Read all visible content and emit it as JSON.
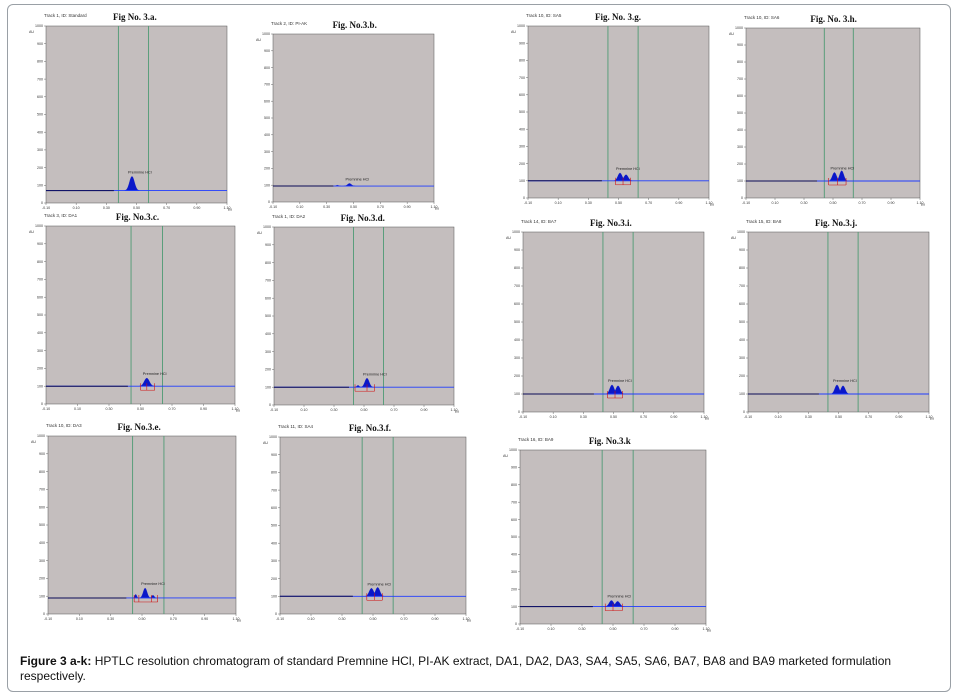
{
  "caption": {
    "label": "Figure 3 a-k:",
    "text": " HPTLC resolution  chromatogram of standard Premnine HCl, PI-AK extract, DA1, DA2,  DA3, SA4, SA5, SA6, BA7, BA8 and BA9 marketed formulation respectively."
  },
  "colors": {
    "plot_bg": "#c4bebe",
    "baseline": "#1f3cff",
    "peak_fill": "#0a17c9",
    "divider": "#4f9a74",
    "marker": "#d01010"
  },
  "chart_data": [
    {
      "id": "a",
      "type": "area",
      "track_label": "Track 1, ID: Standard",
      "title": "Fig No. 3.a.",
      "au_label": "AU",
      "x_unit": "Rf",
      "ylim": [
        0,
        1000
      ],
      "yticks": [
        "1000",
        "900",
        "800",
        "700",
        "600",
        "500",
        "400",
        "300",
        "200",
        "100",
        "0"
      ],
      "xlim": [
        -0.1,
        1.1
      ],
      "xticks": [
        "-0.10",
        "0.10",
        "0.30",
        "0.50",
        "0.70",
        "0.90",
        "1.10"
      ],
      "baseline": 70,
      "dividers": [
        0.38,
        0.58
      ],
      "peaks": [
        {
          "rf": 0.47,
          "height": 150,
          "width": 0.016,
          "label": "Premnine HCl"
        }
      ],
      "markers": []
    },
    {
      "id": "b",
      "type": "area",
      "track_label": "Track 2, ID: PI-AK",
      "title": "Fig. No.3.b.",
      "au_label": "AU",
      "x_unit": "Rf",
      "ylim": [
        0,
        1000
      ],
      "yticks": [
        "1000",
        "900",
        "800",
        "700",
        "600",
        "500",
        "400",
        "300",
        "200",
        "100",
        "0"
      ],
      "xlim": [
        -0.1,
        1.1
      ],
      "xticks": [
        "-0.10",
        "0.10",
        "0.30",
        "0.50",
        "0.70",
        "0.90",
        "1.10"
      ],
      "baseline": 95,
      "dividers": [],
      "peaks": [
        {
          "rf": 0.47,
          "height": 110,
          "width": 0.014,
          "label": "Premnine HCl"
        },
        {
          "rf": 0.38,
          "height": 100,
          "width": 0.008,
          "label": ""
        }
      ],
      "markers": []
    },
    {
      "id": "g",
      "type": "area",
      "track_label": "Track 10, ID: SA5",
      "title": "Fig. No. 3.g.",
      "au_label": "AU",
      "x_unit": "Rf",
      "ylim": [
        0,
        1000
      ],
      "yticks": [
        "1000",
        "900",
        "800",
        "700",
        "600",
        "500",
        "400",
        "300",
        "200",
        "100",
        "0"
      ],
      "xlim": [
        -0.1,
        1.1
      ],
      "xticks": [
        "-0.10",
        "0.10",
        "0.30",
        "0.50",
        "0.70",
        "0.90",
        "1.10"
      ],
      "baseline": 100,
      "dividers": [
        0.43,
        0.63
      ],
      "peaks": [
        {
          "rf": 0.51,
          "height": 145,
          "width": 0.014,
          "label": "Premnine HCl"
        },
        {
          "rf": 0.55,
          "height": 135,
          "width": 0.014,
          "label": ""
        }
      ],
      "markers": [
        0.48,
        0.53,
        0.58
      ]
    },
    {
      "id": "h",
      "type": "area",
      "track_label": "Track 10, ID: SA6",
      "title": "Fig. No. 3.h.",
      "au_label": "AU",
      "x_unit": "Rf",
      "ylim": [
        0,
        1000
      ],
      "yticks": [
        "1000",
        "900",
        "800",
        "700",
        "600",
        "500",
        "400",
        "300",
        "200",
        "100",
        "0"
      ],
      "xlim": [
        -0.1,
        1.1
      ],
      "xticks": [
        "-0.10",
        "0.10",
        "0.30",
        "0.50",
        "0.70",
        "0.90",
        "1.10"
      ],
      "baseline": 100,
      "dividers": [
        0.44,
        0.64
      ],
      "peaks": [
        {
          "rf": 0.51,
          "height": 150,
          "width": 0.014,
          "label": "Premnine HCl"
        },
        {
          "rf": 0.56,
          "height": 160,
          "width": 0.014,
          "label": ""
        }
      ],
      "markers": [
        0.47,
        0.53,
        0.59
      ]
    },
    {
      "id": "c",
      "type": "area",
      "track_label": "Track 3, ID: DA1",
      "title": "Fig. No.3.c.",
      "au_label": "AU",
      "x_unit": "Rf",
      "ylim": [
        0,
        1000
      ],
      "yticks": [
        "1000",
        "900",
        "800",
        "700",
        "600",
        "500",
        "400",
        "300",
        "200",
        "100",
        "0"
      ],
      "xlim": [
        -0.1,
        1.1
      ],
      "xticks": [
        "-0.10",
        "0.10",
        "0.30",
        "0.50",
        "0.70",
        "0.90",
        "1.10"
      ],
      "baseline": 100,
      "dividers": [
        0.44,
        0.64
      ],
      "peaks": [
        {
          "rf": 0.54,
          "height": 145,
          "width": 0.016,
          "label": "Premnine HCl"
        }
      ],
      "markers": [
        0.5,
        0.54,
        0.59
      ]
    },
    {
      "id": "d",
      "type": "area",
      "track_label": "Track 1, ID: DA2",
      "title": "Fig. No.3.d.",
      "au_label": "AU",
      "x_unit": "Rf",
      "ylim": [
        0,
        1000
      ],
      "yticks": [
        "1000",
        "900",
        "800",
        "700",
        "600",
        "500",
        "400",
        "300",
        "200",
        "100",
        "0"
      ],
      "xlim": [
        -0.1,
        1.1
      ],
      "xticks": [
        "-0.10",
        "0.10",
        "0.30",
        "0.50",
        "0.70",
        "0.90",
        "1.10"
      ],
      "baseline": 100,
      "dividers": [
        0.43,
        0.63
      ],
      "peaks": [
        {
          "rf": 0.52,
          "height": 150,
          "width": 0.014,
          "label": "Premnine HCl"
        },
        {
          "rf": 0.46,
          "height": 110,
          "width": 0.008,
          "label": ""
        }
      ],
      "markers": [
        0.44,
        0.52,
        0.57
      ]
    },
    {
      "id": "i",
      "type": "area",
      "track_label": "Track 14, ID: BA7",
      "title": "Fig. No.3.i.",
      "au_label": "AU",
      "x_unit": "Rf",
      "ylim": [
        0,
        1000
      ],
      "yticks": [
        "1000",
        "900",
        "800",
        "700",
        "600",
        "500",
        "400",
        "300",
        "200",
        "100",
        "0"
      ],
      "xlim": [
        -0.1,
        1.1
      ],
      "xticks": [
        "-0.10",
        "0.10",
        "0.30",
        "0.50",
        "0.70",
        "0.90",
        "1.10"
      ],
      "baseline": 100,
      "dividers": [
        0.43,
        0.63
      ],
      "peaks": [
        {
          "rf": 0.49,
          "height": 150,
          "width": 0.014,
          "label": "Premnine HCl"
        },
        {
          "rf": 0.53,
          "height": 145,
          "width": 0.014,
          "label": ""
        }
      ],
      "markers": [
        0.46,
        0.51,
        0.56
      ]
    },
    {
      "id": "j",
      "type": "area",
      "track_label": "Track 15, ID: BA8",
      "title": "Fig. No.3.j.",
      "au_label": "AU",
      "x_unit": "Rf",
      "ylim": [
        0,
        1000
      ],
      "yticks": [
        "1000",
        "900",
        "800",
        "700",
        "600",
        "500",
        "400",
        "300",
        "200",
        "100",
        "0"
      ],
      "xlim": [
        -0.1,
        1.1
      ],
      "xticks": [
        "-0.10",
        "0.10",
        "0.30",
        "0.50",
        "0.70",
        "0.90",
        "1.10"
      ],
      "baseline": 100,
      "dividers": [
        0.43,
        0.63
      ],
      "peaks": [
        {
          "rf": 0.49,
          "height": 150,
          "width": 0.014,
          "label": "Premnine HCl"
        },
        {
          "rf": 0.53,
          "height": 145,
          "width": 0.014,
          "label": ""
        }
      ],
      "markers": []
    },
    {
      "id": "e",
      "type": "area",
      "track_label": "Track 10, ID: DA3",
      "title": "Fig. No.3.e.",
      "au_label": "AU",
      "x_unit": "Rf",
      "ylim": [
        0,
        1000
      ],
      "yticks": [
        "1000",
        "900",
        "800",
        "700",
        "600",
        "500",
        "400",
        "300",
        "200",
        "100",
        "0"
      ],
      "xlim": [
        -0.1,
        1.1
      ],
      "xticks": [
        "-0.10",
        "0.10",
        "0.30",
        "0.50",
        "0.70",
        "0.90",
        "1.10"
      ],
      "baseline": 90,
      "dividers": [
        0.44,
        0.64
      ],
      "peaks": [
        {
          "rf": 0.52,
          "height": 145,
          "width": 0.012,
          "label": "Premnine HCl"
        },
        {
          "rf": 0.46,
          "height": 110,
          "width": 0.006,
          "label": ""
        },
        {
          "rf": 0.57,
          "height": 105,
          "width": 0.008,
          "label": ""
        }
      ],
      "markers": [
        0.45,
        0.48,
        0.56,
        0.6
      ]
    },
    {
      "id": "f",
      "type": "area",
      "track_label": "Track 11, ID: SA4",
      "title": "Fig. No.3.f.",
      "au_label": "AU",
      "x_unit": "Rf",
      "ylim": [
        0,
        1000
      ],
      "yticks": [
        "1000",
        "900",
        "800",
        "700",
        "600",
        "500",
        "400",
        "300",
        "200",
        "100",
        "0"
      ],
      "xlim": [
        -0.1,
        1.1
      ],
      "xticks": [
        "-0.10",
        "0.10",
        "0.30",
        "0.50",
        "0.70",
        "0.90",
        "1.10"
      ],
      "baseline": 100,
      "dividers": [
        0.43,
        0.63
      ],
      "peaks": [
        {
          "rf": 0.49,
          "height": 145,
          "width": 0.014,
          "label": "Premnine HCl"
        },
        {
          "rf": 0.53,
          "height": 150,
          "width": 0.014,
          "label": ""
        }
      ],
      "markers": [
        0.46,
        0.51,
        0.56
      ]
    },
    {
      "id": "k",
      "type": "area",
      "track_label": "Track 16, ID: BA9",
      "title": "Fig. No.3.k",
      "au_label": "AU",
      "x_unit": "Rf",
      "ylim": [
        0,
        1000
      ],
      "yticks": [
        "1000",
        "900",
        "800",
        "700",
        "600",
        "500",
        "400",
        "300",
        "200",
        "100",
        "0"
      ],
      "xlim": [
        -0.1,
        1.1
      ],
      "xticks": [
        "-0.10",
        "0.10",
        "0.30",
        "0.50",
        "0.70",
        "0.90",
        "1.10"
      ],
      "baseline": 100,
      "dividers": [
        0.43,
        0.63
      ],
      "peaks": [
        {
          "rf": 0.49,
          "height": 135,
          "width": 0.014,
          "label": "Premnine HCl"
        },
        {
          "rf": 0.53,
          "height": 130,
          "width": 0.014,
          "label": ""
        }
      ],
      "markers": [
        0.45,
        0.5,
        0.56
      ]
    }
  ]
}
